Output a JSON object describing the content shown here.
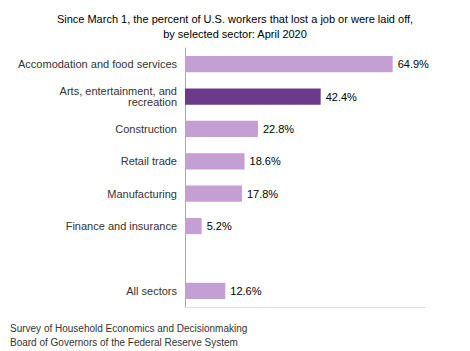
{
  "chart_data": {
    "type": "bar",
    "orientation": "horizontal",
    "title": "Since March 1, the percent of U.S. workers that lost a job or were laid off,\nby selected sector: April 2020",
    "categories": [
      "All sectors",
      null,
      "Finance and insurance",
      "Manufacturing",
      "Retail trade",
      "Construction",
      "Arts, entertainment, and\nrecreation",
      "Accomodation and food services"
    ],
    "values": [
      12.6,
      0,
      5.2,
      17.8,
      18.6,
      22.8,
      42.4,
      64.9
    ],
    "value_labels": [
      "12.6%",
      null,
      "5.2%",
      "17.8%",
      "18.6%",
      "22.8%",
      "42.4%",
      "64.9%"
    ],
    "colors": [
      "#c49fd4",
      "#ffffff",
      "#c49fd4",
      "#c49fd4",
      "#c49fd4",
      "#c49fd4",
      "#6b3a8a",
      "#c49fd4"
    ],
    "data_labels": true,
    "xlim": [
      0,
      75
    ],
    "tick_labels": "y",
    "grid": false,
    "annotations": [
      "Survey of Household Economics and Decisionmaking",
      "Board of Governors of the Federal Reserve System"
    ]
  }
}
